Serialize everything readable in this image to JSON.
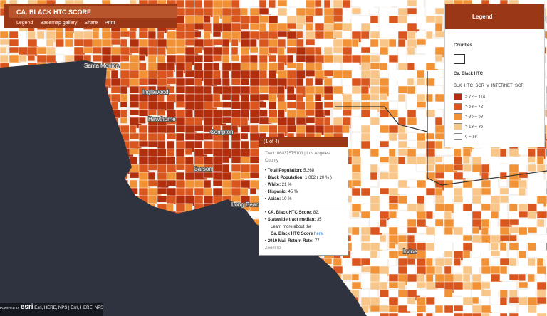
{
  "app": {
    "title": "CA. BLACK HTC SCORE",
    "toolbar": [
      "Legend",
      "Basemap gallery",
      "Share",
      "Print"
    ]
  },
  "legend": {
    "title": "Legend",
    "counties": "Counties",
    "layer": "Ca. Black HTC",
    "field": "BLK_HTC_SCR_v_INTERNET_SCR",
    "classes": [
      {
        "label": "> 72 – 114",
        "color": "#b22f0e"
      },
      {
        "label": "> 53 – 72",
        "color": "#d9561f"
      },
      {
        "label": "> 35 – 53",
        "color": "#f19237"
      },
      {
        "label": "> 18 – 35",
        "color": "#f9c689"
      },
      {
        "label": "0 – 18",
        "color": "#ffffff"
      }
    ]
  },
  "popup": {
    "pager": "(1 of 4)",
    "tract": "Tract: 06037575103 | Los Angeles County",
    "fields": [
      {
        "label": "Total Population:",
        "value": "5,268"
      },
      {
        "label": "Black Population:",
        "value": "1,062 ( 20 % )"
      },
      {
        "label": "White:",
        "value": "21 %"
      },
      {
        "label": "Hispanic:",
        "value": "45 %"
      },
      {
        "label": "Asian:",
        "value": "10 %"
      }
    ],
    "score_fields": [
      {
        "label": "CA. Black HTC Score:",
        "value": "82."
      },
      {
        "label": "Statewide tract median:",
        "value": "35"
      }
    ],
    "learn_more": "Learn more about the",
    "score_name": "Ca. Black HTC Score",
    "link": "here.",
    "last_field": {
      "label": "2010 Mail Return Rate:",
      "value": "77"
    },
    "zoom": "Zoom to"
  },
  "map_labels": [
    "Santa Monica",
    "Inglewood",
    "Hawthorne",
    "Compton",
    "Carson",
    "Long Beach",
    "Irvine"
  ],
  "attribution": {
    "powered": "POWERED BY",
    "logo": "esri",
    "credits": "Esri, HERE, NPS | Esri, HERE, NPS"
  }
}
